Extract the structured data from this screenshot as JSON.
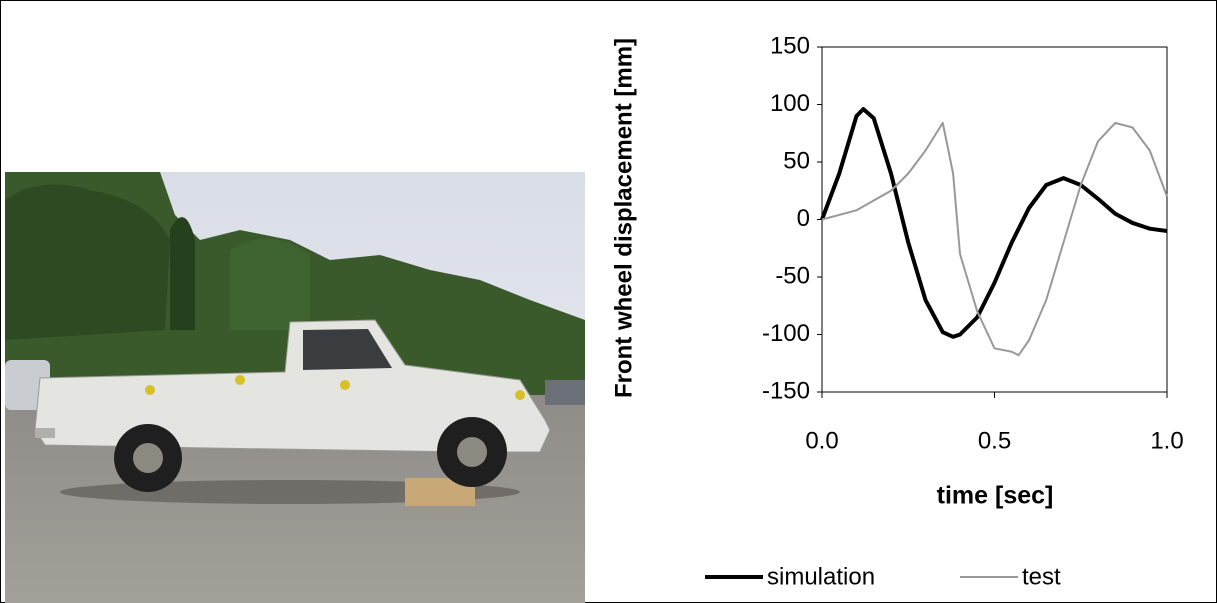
{
  "chart_data": {
    "type": "line",
    "y_label": "Front wheel displacement [mm]",
    "x_label": "time [sec]",
    "xlim": [
      0,
      1
    ],
    "ylim": [
      -150,
      150
    ],
    "xticks": [
      {
        "value": 0,
        "label": "0.0"
      },
      {
        "value": 0.5,
        "label": "0.5"
      },
      {
        "value": 1,
        "label": "1.0"
      }
    ],
    "yticks": [
      -150,
      -100,
      -50,
      0,
      50,
      100,
      150
    ],
    "series": [
      {
        "name": "simulation",
        "color": "#000000",
        "x": [
          0,
          0.05,
          0.1,
          0.12,
          0.15,
          0.2,
          0.25,
          0.3,
          0.35,
          0.38,
          0.4,
          0.45,
          0.5,
          0.55,
          0.6,
          0.65,
          0.7,
          0.75,
          0.8,
          0.85,
          0.9,
          0.95,
          1.0
        ],
        "values": [
          0,
          40,
          90,
          96,
          88,
          40,
          -20,
          -70,
          -98,
          -102,
          -100,
          -85,
          -55,
          -20,
          10,
          30,
          36,
          30,
          18,
          5,
          -3,
          -8,
          -10
        ]
      },
      {
        "name": "test",
        "color": "#999999",
        "x": [
          0,
          0.1,
          0.2,
          0.25,
          0.3,
          0.35,
          0.38,
          0.4,
          0.45,
          0.5,
          0.55,
          0.57,
          0.6,
          0.65,
          0.7,
          0.75,
          0.8,
          0.85,
          0.9,
          0.95,
          1.0
        ],
        "values": [
          0,
          8,
          25,
          40,
          60,
          84,
          40,
          -30,
          -80,
          -112,
          -115,
          -118,
          -105,
          -70,
          -20,
          30,
          68,
          84,
          80,
          60,
          20
        ]
      }
    ]
  }
}
